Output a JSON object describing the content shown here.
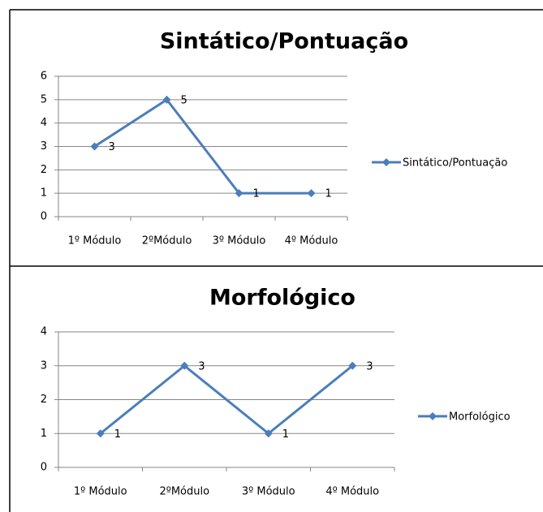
{
  "chart_data": [
    {
      "type": "line",
      "title": "Sintático/Pontuação",
      "categories": [
        "1º Módulo",
        "2ºMódulo",
        "3º Módulo",
        "4º Módulo"
      ],
      "series": [
        {
          "name": "Sintático/Pontuação",
          "color": "#4a7ebb",
          "values": [
            3,
            5,
            1,
            1
          ]
        }
      ],
      "ylim": [
        0,
        6
      ],
      "yticks": [
        0,
        1,
        2,
        3,
        4,
        5,
        6
      ],
      "grid": true,
      "legend": "right"
    },
    {
      "type": "line",
      "title": "Morfológico",
      "categories": [
        "1º Módulo",
        "2ºMódulo",
        "3º Módulo",
        "4º Módulo"
      ],
      "series": [
        {
          "name": "Morfológico",
          "color": "#4a7ebb",
          "values": [
            1,
            3,
            1,
            3
          ]
        }
      ],
      "ylim": [
        0,
        4
      ],
      "yticks": [
        0,
        1,
        2,
        3,
        4
      ],
      "grid": true,
      "legend": "right"
    }
  ]
}
